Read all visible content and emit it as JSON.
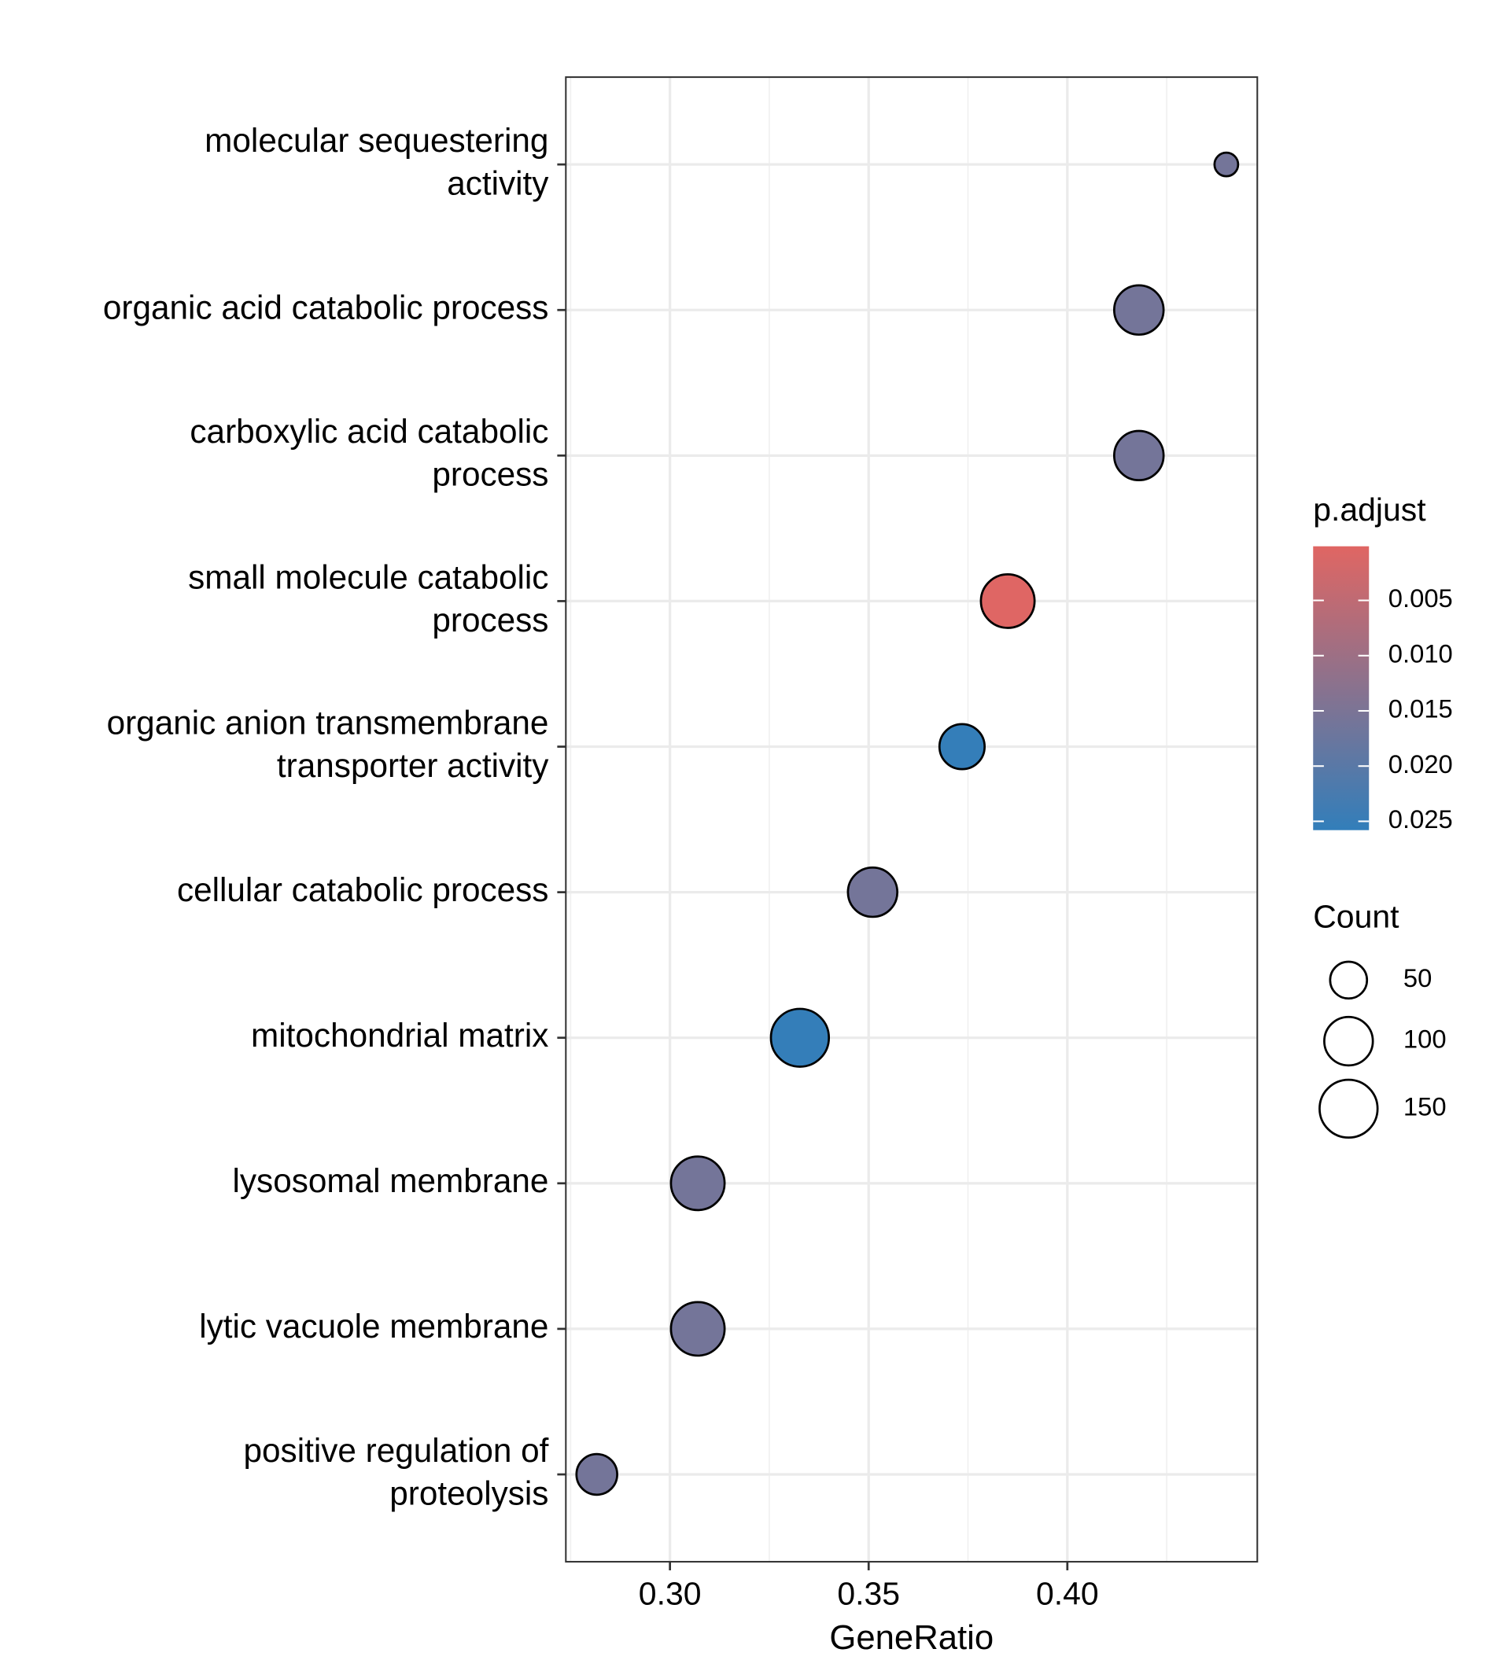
{
  "chart_data": {
    "type": "dot",
    "x_label": "GeneRatio",
    "categories": [
      [
        "molecular sequestering",
        "activity"
      ],
      [
        "organic acid catabolic process"
      ],
      [
        "carboxylic acid catabolic",
        "process"
      ],
      [
        "small molecule catabolic",
        "process"
      ],
      [
        "organic anion transmembrane",
        "transporter activity"
      ],
      [
        "cellular catabolic process"
      ],
      [
        "mitochondrial matrix"
      ],
      [
        "lysosomal membrane"
      ],
      [
        "lytic vacuole membrane"
      ],
      [
        "positive regulation of",
        "proteolysis"
      ]
    ],
    "values": [
      0.44,
      0.418,
      0.418,
      0.385,
      0.3735,
      0.351,
      0.3327,
      0.307,
      0.307,
      0.2816
    ],
    "sizes": [
      10,
      104,
      104,
      126,
      84,
      104,
      150,
      126,
      126,
      65
    ],
    "color_values": [
      0.016,
      0.016,
      0.016,
      0.0003,
      0.0255,
      0.016,
      0.0255,
      0.016,
      0.016,
      0.016
    ],
    "xlim": [
      0.2738,
      0.4478
    ],
    "xticks": [
      {
        "value": 0.3,
        "label": "0.30"
      },
      {
        "value": 0.35,
        "label": "0.35"
      },
      {
        "value": 0.4,
        "label": "0.40"
      }
    ],
    "grid": true,
    "color_scale": {
      "title": "p.adjust",
      "low_color": "#e06663",
      "high_color": "#327eba",
      "lim": [
        0.0001,
        0.0258
      ],
      "ticks": [
        0.005,
        {
          "value": 0.01,
          "label": "0.010"
        },
        0.015,
        {
          "value": 0.02,
          "label": "0.020"
        },
        0.025
      ]
    },
    "size_legend": {
      "title": "Count",
      "values": [
        50,
        100,
        150
      ]
    }
  }
}
